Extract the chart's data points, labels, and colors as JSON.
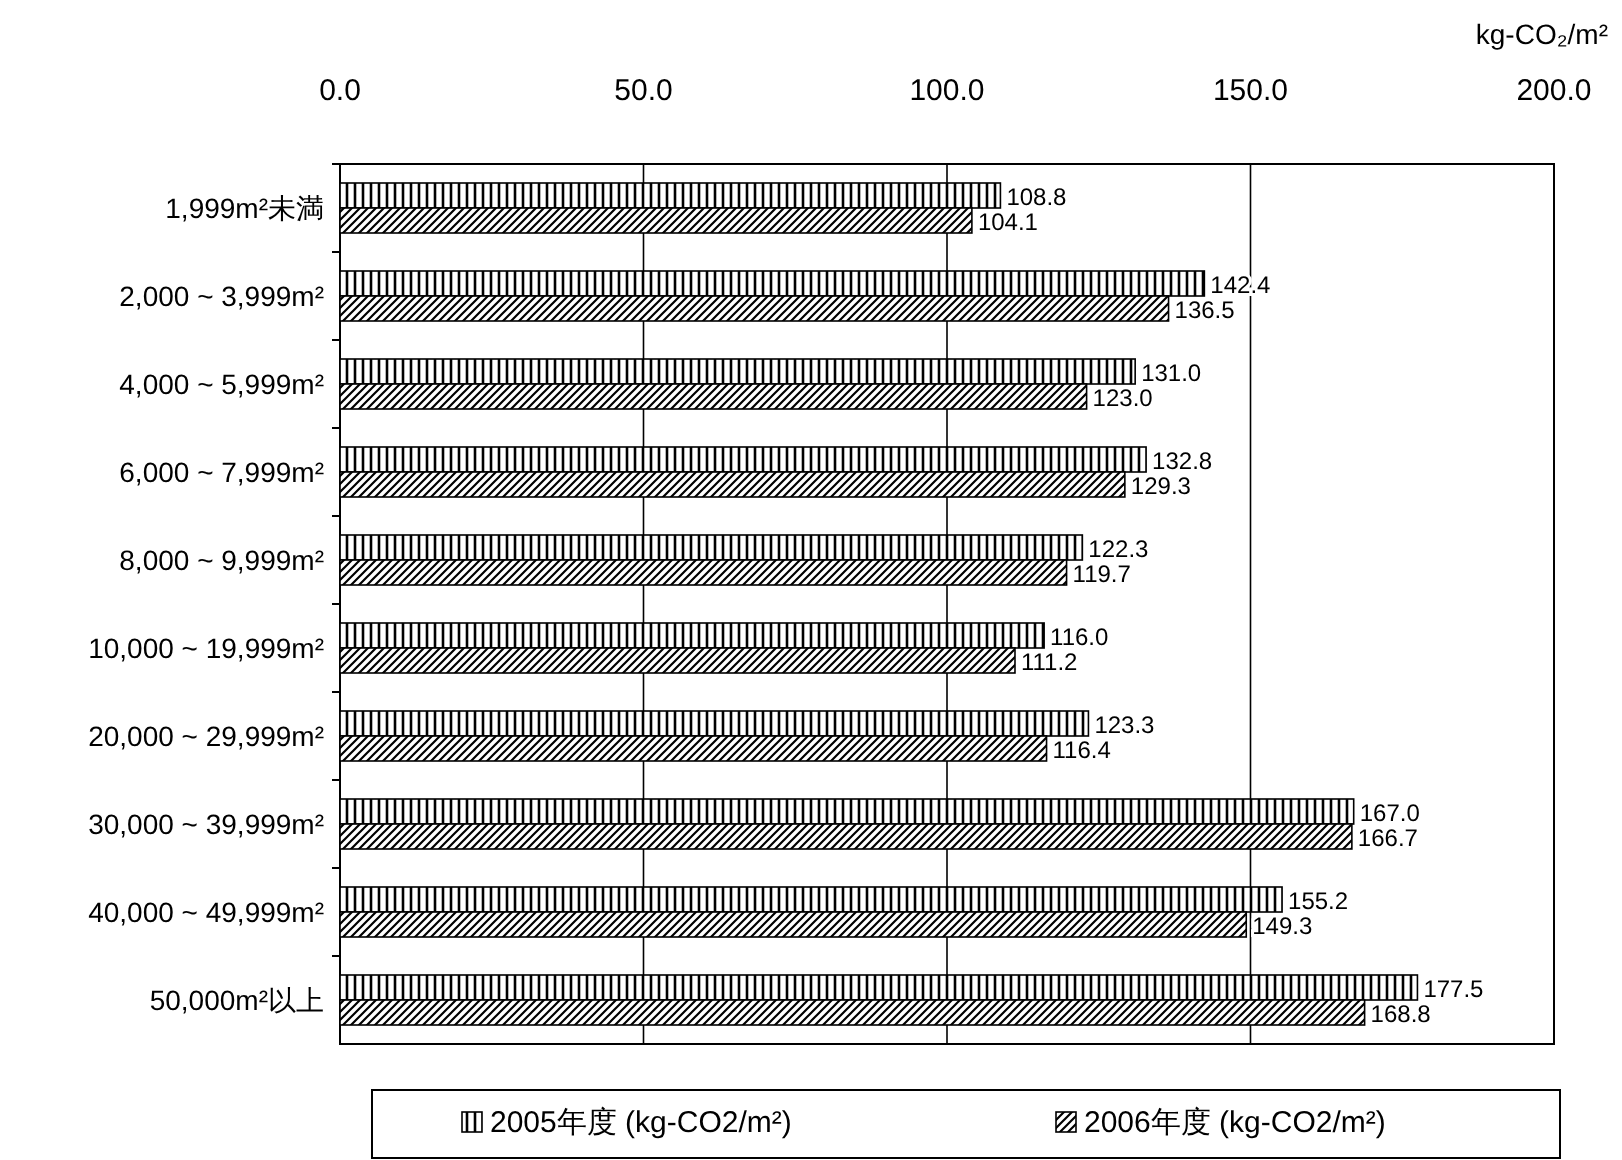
{
  "chart_data": {
    "type": "bar",
    "orientation": "horizontal",
    "xlabel": "kg-CO₂/m²",
    "categories": [
      "1,999m²未満",
      "2,000 ~ 3,999m²",
      "4,000 ~ 5,999m²",
      "6,000 ~ 7,999m²",
      "8,000 ~ 9,999m²",
      "10,000 ~ 19,999m²",
      "20,000 ~ 29,999m²",
      "30,000 ~ 39,999m²",
      "40,000 ~ 49,999m²",
      "50,000m²以上"
    ],
    "series": [
      {
        "name": "2005年度 (kg-CO2/m²)",
        "color": "#000000",
        "values": [
          108.8,
          142.4,
          131.0,
          132.8,
          122.3,
          116.0,
          123.3,
          167.0,
          155.2,
          177.5
        ],
        "value_labels": [
          "108.8",
          "142.4",
          "131.0",
          "132.8",
          "122.3",
          "116.0",
          "123.3",
          "167.0",
          "155.2",
          "177.5"
        ]
      },
      {
        "name": "2006年度 (kg-CO2/m²)",
        "color": "#000000",
        "values": [
          104.1,
          136.5,
          123.0,
          129.3,
          119.7,
          111.2,
          116.4,
          166.7,
          149.3,
          168.8
        ],
        "value_labels": [
          "104.1",
          "136.5",
          "123.0",
          "129.3",
          "119.7",
          "111.2",
          "116.4",
          "166.7",
          "149.3",
          "168.8"
        ]
      }
    ],
    "xlim": [
      0,
      200
    ],
    "xticks": [
      {
        "value": 0,
        "label": "0.0"
      },
      {
        "value": 50,
        "label": "50.0"
      },
      {
        "value": 100,
        "label": "100.0"
      },
      {
        "value": 150,
        "label": "150.0"
      },
      {
        "value": 200,
        "label": "200.0"
      }
    ],
    "grid": "x",
    "legend": "bottom"
  }
}
